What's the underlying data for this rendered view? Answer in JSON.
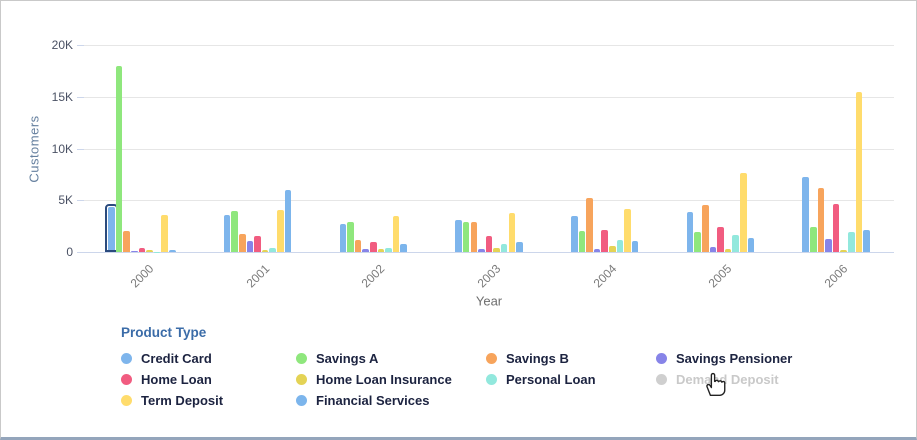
{
  "chart": {
    "y_axis_title": "Customers",
    "x_axis_title": "Year"
  },
  "legend": {
    "title": "Product Type",
    "items": [
      {
        "label": "Credit Card",
        "color": "#7EB5EC",
        "disabled": false
      },
      {
        "label": "Savings A",
        "color": "#8FE77D",
        "disabled": false
      },
      {
        "label": "Savings B",
        "color": "#F7A45C",
        "disabled": false
      },
      {
        "label": "Savings Pensioner",
        "color": "#8784E8",
        "disabled": false
      },
      {
        "label": "Home Loan",
        "color": "#F15C80",
        "disabled": false
      },
      {
        "label": "Home Loan Insurance",
        "color": "#E4D355",
        "disabled": false
      },
      {
        "label": "Personal Loan",
        "color": "#92E8DD",
        "disabled": false
      },
      {
        "label": "Demand Deposit",
        "color": "#CFCFCF",
        "disabled": true
      },
      {
        "label": "Term Deposit",
        "color": "#FFDC6C",
        "disabled": false
      },
      {
        "label": "Financial Services",
        "color": "#7CB5EC",
        "disabled": false
      }
    ]
  },
  "cursor": {
    "icon": "hand-pointer",
    "over": "Demand Deposit"
  },
  "colors": {
    "legend_title": "#3B6CA8",
    "legend_label": "#1C2340",
    "legend_label_disabled": "#C9C9C9",
    "y_axis_title": "#66809F",
    "x_axis_title": "#6E6E6E",
    "tick_label": "#4A5164",
    "year_label": "#7B7B7B",
    "gridline": "#E6E6E6",
    "axis_line": "#CCD6EB",
    "highlight_outline": "#2B4B7E"
  },
  "chart_data": {
    "type": "bar",
    "title": "",
    "xlabel": "Year",
    "ylabel": "Customers",
    "categories": [
      "2000",
      "2001",
      "2002",
      "2003",
      "2004",
      "2005",
      "2006"
    ],
    "series": [
      {
        "name": "Credit Card",
        "color": "#7EB5EC",
        "values": [
          4300,
          3600,
          2700,
          3100,
          3500,
          3900,
          7200
        ]
      },
      {
        "name": "Savings A",
        "color": "#8FE77D",
        "values": [
          18000,
          3950,
          2900,
          2900,
          2000,
          1900,
          2400
        ]
      },
      {
        "name": "Savings B",
        "color": "#F7A45C",
        "values": [
          2000,
          1700,
          1200,
          2900,
          5200,
          4500,
          6200
        ]
      },
      {
        "name": "Savings Pensioner",
        "color": "#8784E8",
        "values": [
          50,
          1100,
          250,
          300,
          300,
          500,
          1300
        ]
      },
      {
        "name": "Home Loan",
        "color": "#F15C80",
        "values": [
          400,
          1500,
          1000,
          1500,
          2100,
          2400,
          4600
        ]
      },
      {
        "name": "Home Loan Insurance",
        "color": "#E4D355",
        "values": [
          200,
          150,
          300,
          400,
          600,
          300,
          200
        ]
      },
      {
        "name": "Personal Loan",
        "color": "#92E8DD",
        "values": [
          30,
          350,
          350,
          750,
          1200,
          1650,
          1900
        ]
      },
      {
        "name": "Term Deposit",
        "color": "#FFDC6C",
        "values": [
          3600,
          4100,
          3500,
          3800,
          4200,
          7600,
          15500
        ]
      },
      {
        "name": "Financial Services",
        "color": "#7CB5EC",
        "values": [
          150,
          6000,
          800,
          1000,
          1100,
          1350,
          2150
        ]
      }
    ],
    "disabled_series": [
      "Demand Deposit"
    ],
    "highlight": {
      "series": "Credit Card",
      "category": "2000"
    },
    "ylim": [
      0,
      20000
    ],
    "yticks": [
      {
        "value": 0,
        "label": "0"
      },
      {
        "value": 5000,
        "label": "5K"
      },
      {
        "value": 10000,
        "label": "10K"
      },
      {
        "value": 15000,
        "label": "15K"
      },
      {
        "value": 20000,
        "label": "20K"
      }
    ],
    "grid": true,
    "legend_position": "bottom"
  }
}
